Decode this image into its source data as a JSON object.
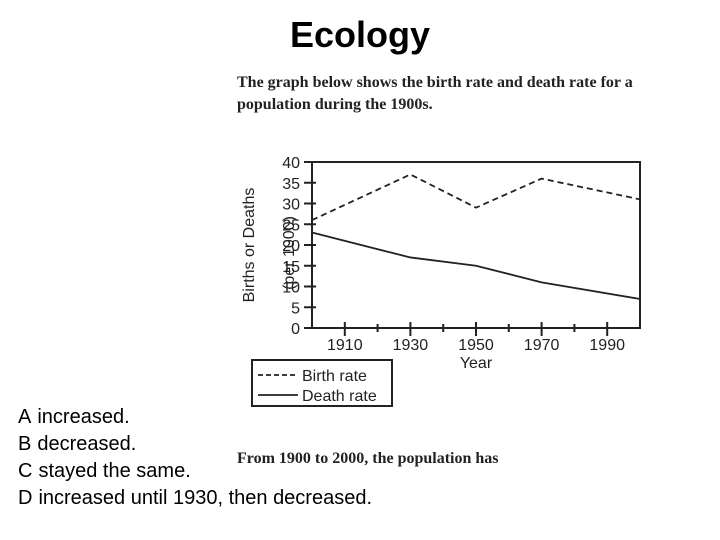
{
  "slide": {
    "title": "Ecology",
    "question": "The graph below shows the birth rate and death rate for a population during the 1900s.",
    "prompt": "From 1900 to 2000, the population has"
  },
  "answers": [
    {
      "letter": "A",
      "text": "increased."
    },
    {
      "letter": "B",
      "text": "decreased."
    },
    {
      "letter": "C",
      "text": "stayed the same."
    },
    {
      "letter": "D",
      "text": "increased until 1930, then decreased."
    }
  ],
  "chart_data": {
    "type": "line",
    "xlabel": "Year",
    "ylabel": "Births or Deaths",
    "ylabel_unit": "(per 1000)",
    "xlim": [
      1900,
      2000
    ],
    "ylim": [
      0,
      40
    ],
    "x_ticks": [
      1910,
      1930,
      1950,
      1970,
      1990
    ],
    "y_ticks": [
      0,
      5,
      10,
      15,
      20,
      25,
      30,
      35,
      40
    ],
    "series": [
      {
        "name": "Birth rate",
        "style": "dashed",
        "x": [
          1900,
          1930,
          1950,
          1970,
          2000
        ],
        "y": [
          26,
          37,
          29,
          36,
          31
        ]
      },
      {
        "name": "Death rate",
        "style": "solid",
        "x": [
          1900,
          1930,
          1950,
          1970,
          2000
        ],
        "y": [
          23,
          17,
          15,
          11,
          7
        ]
      }
    ],
    "legend_position": "bottom-left",
    "colors": {
      "line": "#222222"
    }
  }
}
